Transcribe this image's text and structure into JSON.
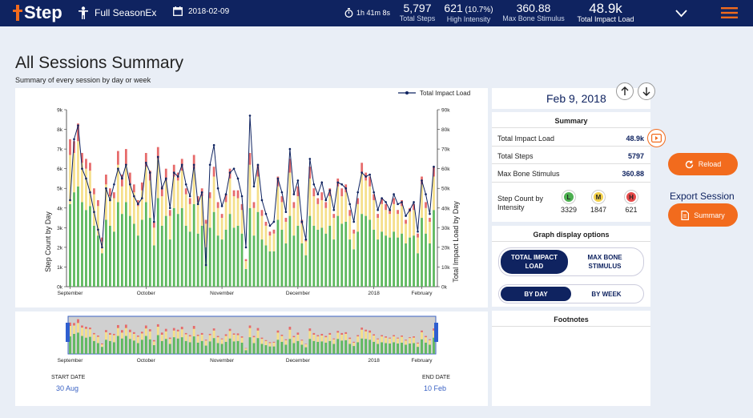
{
  "app": {
    "logo_text": "Step",
    "session_name": "Full SeasonEx",
    "date": "2018-02-09",
    "duration": "1h 41m 8s"
  },
  "header_stats": [
    {
      "value": "5,797",
      "extra": "",
      "label": "Total Steps"
    },
    {
      "value": "621",
      "extra": " (10.7%)",
      "label": "High Intensity"
    },
    {
      "value": "360.88",
      "extra": "",
      "label": "Max Bone Stimulus"
    },
    {
      "value": "48.9k",
      "extra": "",
      "label": "Total Impact Load"
    }
  ],
  "page": {
    "title": "All Sessions Summary",
    "subtitle": "Summary of every session by day or week"
  },
  "legend_label": "Total Impact Load",
  "right_panel": {
    "date": "Feb 9, 2018",
    "summary_header": "Summary",
    "rows": [
      {
        "label": "Total Impact Load",
        "value": "48.9k"
      },
      {
        "label": "Total Steps",
        "value": "5797"
      },
      {
        "label": "Max Bone Stimulus",
        "value": "360.88"
      }
    ],
    "intensity_label": "Step Count by Intensity",
    "intensity": [
      {
        "letter": "L",
        "value": "3329",
        "color": "#4caf50"
      },
      {
        "letter": "M",
        "value": "1847",
        "color": "#f2d04a"
      },
      {
        "letter": "H",
        "value": "621",
        "color": "#e64a4a"
      }
    ],
    "graph_options_header": "Graph display options",
    "metric_toggle": [
      "TOTAL IMPACT LOAD",
      "MAX BONE STIMULUS"
    ],
    "period_toggle": [
      "BY DAY",
      "BY WEEK"
    ],
    "footnotes_header": "Footnotes"
  },
  "buttons": {
    "reload": "Reload",
    "export_label": "Export Session",
    "summary": "Summary"
  },
  "range": {
    "start_label": "START DATE",
    "start_value": "30 Aug",
    "end_label": "END DATE",
    "end_value": "10 Feb"
  },
  "colors": {
    "nav": "#0f2360",
    "accent": "#f26b1d",
    "low": "#5cb85c",
    "medium": "#f5df8a",
    "high": "#e66a6a"
  },
  "chart_data": {
    "type": "bar",
    "ylabel": "Step Count by Day",
    "y2label": "Total Impact Load by Day",
    "ylim": [
      0,
      9000
    ],
    "y2lim": [
      0,
      90000
    ],
    "yticks": [
      "0k",
      "1k",
      "2k",
      "3k",
      "4k",
      "5k",
      "6k",
      "7k",
      "8k",
      "9k"
    ],
    "y2ticks": [
      "0k",
      "10k",
      "20k",
      "30k",
      "40k",
      "50k",
      "60k",
      "70k",
      "80k",
      "90k"
    ],
    "month_labels": [
      "September",
      "October",
      "November",
      "December",
      "2018",
      "February"
    ],
    "series": [
      {
        "name": "Low",
        "values": [
          4200,
          4800,
          5100,
          4300,
          3900,
          4100,
          3100,
          2600,
          1700,
          3400,
          3100,
          2800,
          4300,
          3700,
          4300,
          3600,
          3200,
          2600,
          3400,
          4300,
          3500,
          2100,
          4500,
          3100,
          3600,
          2400,
          4000,
          3700,
          4000,
          3100,
          2800,
          4200,
          2700,
          3100,
          2000,
          3000,
          3800,
          2600,
          2400,
          2900,
          3700,
          3000,
          3100,
          2700,
          900,
          4000,
          2600,
          3800,
          2400,
          2100,
          1800,
          1800,
          3400,
          2900,
          2200,
          3600,
          2600,
          3100,
          2200,
          1600,
          3600,
          3100,
          2900,
          3000,
          2700,
          3100,
          2400,
          3600,
          3200,
          3300,
          2400,
          1900,
          2800,
          3700,
          3600,
          3400,
          2900,
          2400,
          2800,
          2600,
          2500,
          2800,
          2500,
          2700,
          2200,
          2500,
          2600,
          1700,
          3500,
          2700,
          2200,
          3900
        ]
      },
      {
        "name": "Medium",
        "values": [
          2500,
          2000,
          2300,
          2000,
          2100,
          1800,
          1600,
          1500,
          600,
          1800,
          1500,
          1700,
          1900,
          1400,
          1900,
          1600,
          1600,
          1500,
          1500,
          1800,
          1900,
          900,
          2000,
          1500,
          1800,
          1200,
          1600,
          1700,
          1900,
          1600,
          1400,
          1800,
          1600,
          1500,
          1200,
          1500,
          1800,
          1400,
          1100,
          1400,
          1800,
          1600,
          1400,
          1200,
          400,
          2200,
          1400,
          1800,
          1200,
          1000,
          800,
          900,
          1700,
          1400,
          1100,
          2200,
          1400,
          1500,
          1000,
          700,
          1900,
          1500,
          1300,
          1400,
          1300,
          1500,
          1100,
          1500,
          1400,
          1500,
          1200,
          800,
          1400,
          2100,
          1800,
          1700,
          1500,
          1100,
          1400,
          1300,
          1200,
          1400,
          1200,
          1400,
          1000,
          1300,
          1300,
          800,
          1700,
          1300,
          1100,
          1700
        ]
      },
      {
        "name": "High",
        "values": [
          800,
          600,
          900,
          500,
          500,
          400,
          300,
          300,
          200,
          500,
          400,
          300,
          700,
          600,
          800,
          600,
          400,
          300,
          400,
          700,
          500,
          300,
          600,
          500,
          600,
          300,
          600,
          400,
          600,
          300,
          300,
          700,
          300,
          400,
          200,
          300,
          500,
          300,
          200,
          400,
          500,
          300,
          400,
          300,
          100,
          600,
          300,
          600,
          300,
          200,
          200,
          200,
          500,
          300,
          200,
          700,
          300,
          500,
          200,
          100,
          600,
          400,
          300,
          400,
          300,
          400,
          200,
          400,
          400,
          400,
          300,
          200,
          300,
          500,
          400,
          500,
          300,
          200,
          300,
          300,
          200,
          300,
          200,
          300,
          200,
          200,
          300,
          200,
          400,
          300,
          200,
          500
        ]
      }
    ],
    "impact_load": [
      44000,
      75000,
      82000,
      60000,
      55000,
      48000,
      38000,
      29000,
      20000,
      50000,
      44000,
      52000,
      60000,
      55000,
      62000,
      52000,
      46000,
      42000,
      45000,
      63000,
      58000,
      33000,
      66000,
      50000,
      55000,
      40000,
      58000,
      56000,
      62000,
      52000,
      46000,
      62000,
      42000,
      48000,
      11000,
      62000,
      72000,
      50000,
      41000,
      47000,
      58000,
      60000,
      55000,
      46000,
      20000,
      87000,
      51000,
      62000,
      44000,
      37000,
      31000,
      33000,
      55000,
      48000,
      38000,
      70000,
      47000,
      54000,
      33000,
      24000,
      65000,
      52000,
      47000,
      53000,
      44000,
      49000,
      39000,
      53000,
      52000,
      50000,
      42000,
      33000,
      48000,
      58000,
      56000,
      57000,
      48000,
      39000,
      45000,
      43000,
      39000,
      47000,
      42000,
      43000,
      36000,
      39000,
      43000,
      28000,
      54000,
      47000,
      37000,
      61000
    ]
  }
}
